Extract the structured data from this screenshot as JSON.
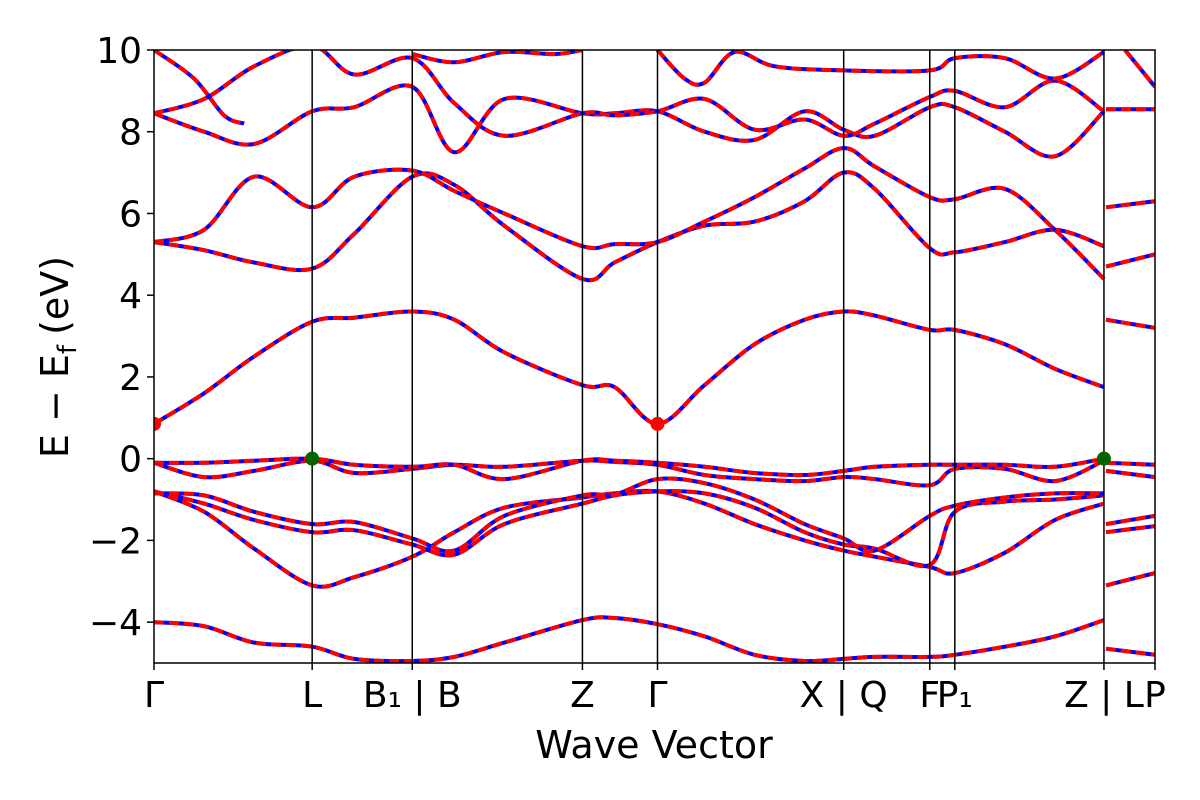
{
  "chart_data": {
    "type": "line",
    "xlabel": "Wave Vector",
    "ylabel": "E − E",
    "ylabel_sub": "f",
    "ylabel_unit": "(eV)",
    "ylim": [
      -5,
      10
    ],
    "yticks": [
      -4,
      -2,
      0,
      2,
      4,
      6,
      8,
      10
    ],
    "ytick_labels": [
      "−4",
      "−2",
      "0",
      "2",
      "4",
      "6",
      "8",
      "10"
    ],
    "xlim": [
      0,
      1
    ],
    "kpoint_positions": [
      0.0,
      0.158,
      0.258,
      0.428,
      0.503,
      0.689,
      0.775,
      0.8,
      0.949,
      1.0
    ],
    "kpoint_label_positions": [
      0.0,
      0.158,
      0.258,
      0.428,
      0.503,
      0.689,
      0.775,
      0.8,
      0.949,
      1.0
    ],
    "kpoint_labels": [
      "Γ",
      "L",
      "B₁ | B",
      "Z",
      "Γ",
      "X | Q",
      "F",
      "P₁",
      "Z | L",
      "P"
    ],
    "vertical_line_positions": [
      0.158,
      0.258,
      0.428,
      0.503,
      0.689,
      0.775,
      0.8,
      0.949
    ],
    "colors": {
      "band_solid": "#0000ff",
      "band_dashed": "#ff0000",
      "vbm": "#006400",
      "cbm": "#ff0000",
      "kline": "#000000"
    },
    "markers": [
      {
        "label": "CBM",
        "x": 0.0,
        "y": 0.85,
        "color": "#ff0000"
      },
      {
        "label": "CBM",
        "x": 0.503,
        "y": 0.85,
        "color": "#ff0000"
      },
      {
        "label": "VBM",
        "x": 0.158,
        "y": 0.0,
        "color": "#006400"
      },
      {
        "label": "VBM",
        "x": 0.949,
        "y": 0.0,
        "color": "#006400"
      }
    ],
    "bands": [
      {
        "x": [
          0,
          0.05,
          0.1,
          0.158,
          0.2,
          0.258,
          0.3,
          0.35,
          0.428,
          0.46,
          0.503,
          0.55,
          0.6,
          0.65,
          0.689,
          0.72,
          0.775,
          0.8,
          0.85,
          0.9,
          0.949,
          0.951,
          1.0
        ],
        "y": [
          -4.0,
          -4.1,
          -4.5,
          -4.6,
          -4.9,
          -4.95,
          -4.85,
          -4.5,
          -3.95,
          -3.9,
          -4.05,
          -4.35,
          -4.8,
          -4.95,
          -4.9,
          -4.85,
          -4.85,
          -4.8,
          -4.6,
          -4.35,
          -3.95,
          -4.65,
          -4.8
        ]
      },
      {
        "x": [
          0,
          0.05,
          0.1,
          0.158,
          0.2,
          0.258,
          0.3,
          0.35,
          0.428,
          0.46,
          0.503,
          0.55,
          0.6,
          0.65,
          0.689,
          0.72,
          0.775,
          0.8,
          0.85,
          0.9,
          0.949,
          0.951,
          1.0
        ],
        "y": [
          -0.8,
          -1.3,
          -2.2,
          -3.1,
          -2.9,
          -2.4,
          -1.8,
          -1.2,
          -0.95,
          -0.85,
          -0.8,
          -1.1,
          -1.6,
          -2.0,
          -2.25,
          -2.4,
          -2.65,
          -2.8,
          -2.3,
          -1.5,
          -1.1,
          -3.1,
          -2.8
        ]
      },
      {
        "x": [
          0,
          0.05,
          0.1,
          0.158,
          0.2,
          0.258,
          0.3,
          0.35,
          0.428,
          0.46,
          0.503,
          0.55,
          0.6,
          0.65,
          0.689,
          0.72,
          0.775,
          0.8,
          0.85,
          0.9,
          0.949,
          0.951,
          1.0
        ],
        "y": [
          -0.8,
          -1.1,
          -1.5,
          -1.8,
          -1.75,
          -2.1,
          -2.35,
          -1.6,
          -1.1,
          -0.9,
          -0.8,
          -0.85,
          -1.2,
          -1.8,
          -2.1,
          -2.2,
          -2.6,
          -1.3,
          -1.05,
          -1.0,
          -0.9,
          -1.8,
          -1.65
        ]
      },
      {
        "x": [
          0,
          0.05,
          0.1,
          0.158,
          0.2,
          0.258,
          0.3,
          0.35,
          0.428,
          0.46,
          0.503,
          0.55,
          0.6,
          0.65,
          0.689,
          0.72,
          0.775,
          0.8,
          0.85,
          0.9,
          0.949,
          0.951,
          1.0
        ],
        "y": [
          -0.85,
          -0.9,
          -1.3,
          -1.6,
          -1.55,
          -1.95,
          -2.25,
          -1.4,
          -0.9,
          -0.88,
          -0.5,
          -0.6,
          -1.0,
          -1.6,
          -1.95,
          -2.25,
          -1.4,
          -1.15,
          -0.95,
          -0.85,
          -0.85,
          -1.6,
          -1.4
        ]
      },
      {
        "x": [
          0,
          0.05,
          0.1,
          0.158,
          0.2,
          0.258,
          0.3,
          0.35,
          0.428,
          0.46,
          0.503,
          0.55,
          0.6,
          0.65,
          0.689,
          0.72,
          0.775,
          0.8,
          0.85,
          0.9,
          0.949,
          0.951,
          1.0
        ],
        "y": [
          -0.1,
          -0.45,
          -0.3,
          -0.05,
          -0.35,
          -0.25,
          -0.15,
          -0.2,
          -0.05,
          -0.08,
          -0.15,
          -0.4,
          -0.5,
          -0.55,
          -0.45,
          -0.5,
          -0.65,
          -0.25,
          -0.25,
          -0.55,
          -0.05,
          -0.3,
          -0.45
        ]
      },
      {
        "x": [
          0,
          0.05,
          0.1,
          0.158,
          0.2,
          0.258,
          0.3,
          0.35,
          0.428,
          0.46,
          0.503,
          0.55,
          0.6,
          0.65,
          0.689,
          0.72,
          0.775,
          0.8,
          0.85,
          0.9,
          0.949,
          0.951,
          1.0
        ],
        "y": [
          -0.1,
          -0.1,
          -0.05,
          0.0,
          -0.15,
          -0.2,
          -0.15,
          -0.5,
          -0.05,
          -0.05,
          -0.1,
          -0.2,
          -0.35,
          -0.4,
          -0.3,
          -0.2,
          -0.15,
          -0.15,
          -0.15,
          -0.2,
          0.0,
          -0.1,
          -0.15
        ]
      },
      {
        "x": [
          0,
          0.05,
          0.1,
          0.158,
          0.2,
          0.258,
          0.3,
          0.35,
          0.428,
          0.46,
          0.503,
          0.55,
          0.6,
          0.65,
          0.689,
          0.72,
          0.775,
          0.8,
          0.85,
          0.9,
          0.949
        ],
        "y": [
          0.85,
          1.6,
          2.5,
          3.35,
          3.45,
          3.6,
          3.4,
          2.6,
          1.8,
          1.75,
          0.85,
          1.8,
          2.8,
          3.4,
          3.6,
          3.5,
          3.15,
          3.15,
          2.8,
          2.2,
          1.75
        ]
      },
      {
        "x": [
          0.951,
          1.0
        ],
        "y": [
          3.4,
          3.2
        ]
      },
      {
        "x": [
          0,
          0.05,
          0.1,
          0.158,
          0.2,
          0.258,
          0.3,
          0.35,
          0.428,
          0.46,
          0.503,
          0.55,
          0.6,
          0.65,
          0.689,
          0.72,
          0.775,
          0.8,
          0.85,
          0.9,
          0.949,
          0.951,
          1.0
        ],
        "y": [
          5.3,
          5.1,
          4.8,
          4.65,
          5.5,
          6.9,
          6.7,
          5.7,
          4.4,
          4.8,
          5.3,
          5.7,
          5.8,
          6.3,
          7.0,
          6.6,
          5.15,
          5.05,
          5.3,
          5.6,
          5.2,
          4.7,
          5.0
        ]
      },
      {
        "x": [
          0,
          0.05,
          0.1,
          0.158,
          0.2,
          0.258,
          0.3,
          0.35,
          0.428,
          0.46,
          0.503,
          0.55,
          0.6,
          0.65,
          0.689,
          0.72,
          0.775,
          0.8,
          0.85,
          0.9,
          0.949,
          0.951,
          1.0
        ],
        "y": [
          5.3,
          5.6,
          6.9,
          6.15,
          6.9,
          7.05,
          6.55,
          6.0,
          5.2,
          5.25,
          5.3,
          5.8,
          6.4,
          7.1,
          7.6,
          7.15,
          6.4,
          6.35,
          6.6,
          5.6,
          4.4,
          6.15,
          6.3
        ]
      },
      {
        "x": [
          0,
          0.05,
          0.1,
          0.158,
          0.2,
          0.258,
          0.3,
          0.35,
          0.428,
          0.46,
          0.503,
          0.55,
          0.6,
          0.65,
          0.689,
          0.72,
          0.775,
          0.8,
          0.85,
          0.9,
          0.949,
          0.951,
          1.0
        ],
        "y": [
          8.45,
          8.0,
          7.7,
          8.5,
          8.6,
          9.1,
          7.5,
          8.8,
          8.45,
          8.45,
          8.5,
          8.0,
          7.8,
          8.5,
          8.05,
          7.9,
          8.6,
          8.6,
          8.0,
          7.4,
          8.5,
          8.55,
          8.55
        ]
      },
      {
        "x": [
          0,
          0.05,
          0.1,
          0.158,
          0.2,
          0.258,
          0.3,
          0.35,
          0.428,
          0.46,
          0.503,
          0.55,
          0.6,
          0.65,
          0.689,
          0.72,
          0.775,
          0.8,
          0.85,
          0.9,
          0.949
        ],
        "y": [
          8.45,
          8.8,
          9.6,
          10.1,
          9.4,
          9.8,
          8.7,
          7.9,
          8.45,
          8.4,
          8.5,
          8.8,
          8.05,
          8.3,
          7.9,
          8.2,
          8.85,
          9.0,
          8.6,
          9.25,
          8.5
        ]
      },
      {
        "x": [
          0,
          0.04,
          0.07,
          0.09
        ],
        "y": [
          10.0,
          9.3,
          8.4,
          8.2
        ]
      },
      {
        "x": [
          0.258,
          0.3,
          0.35,
          0.4,
          0.428
        ],
        "y": [
          9.9,
          9.7,
          9.95,
          9.9,
          10.0
        ]
      },
      {
        "x": [
          0.503,
          0.53,
          0.55,
          0.58,
          0.62,
          0.689,
          0.775,
          0.8,
          0.85,
          0.9,
          0.949
        ],
        "y": [
          10.0,
          9.3,
          9.2,
          9.95,
          9.6,
          9.5,
          9.5,
          9.8,
          9.8,
          9.3,
          9.95
        ]
      },
      {
        "x": [
          0.97,
          1.0
        ],
        "y": [
          10.0,
          9.1
        ]
      }
    ]
  }
}
